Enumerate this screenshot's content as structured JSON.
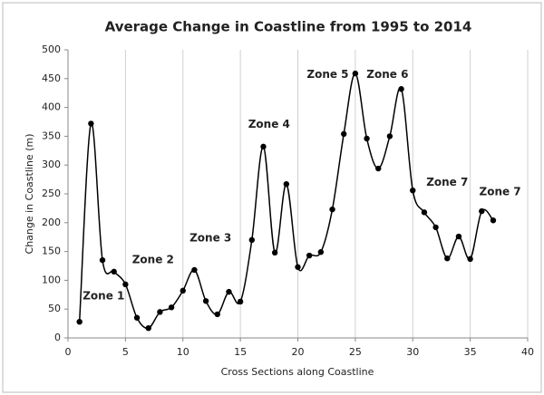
{
  "chart_data": {
    "type": "line",
    "title": "Average Change in Coastline from 1995 to 2014",
    "x_label": "Cross Sections along Coastline",
    "y_label": "Change in Coastline (m)",
    "x": [
      1,
      2,
      3,
      4,
      5,
      6,
      7,
      8,
      9,
      10,
      11,
      12,
      13,
      14,
      15,
      16,
      17,
      18,
      19,
      20,
      21,
      22,
      23,
      24,
      25,
      26,
      27,
      28,
      29,
      30,
      31,
      32,
      33,
      34,
      35,
      36,
      37
    ],
    "series": [
      {
        "name": "Average change",
        "color": "#000000",
        "values": [
          28,
          372,
          135,
          115,
          93,
          35,
          17,
          45,
          53,
          82,
          118,
          64,
          41,
          80,
          63,
          170,
          332,
          148,
          267,
          123,
          143,
          149,
          223,
          354,
          459,
          346,
          294,
          350,
          432,
          256,
          218,
          192,
          138,
          176,
          137,
          220,
          204
        ]
      }
    ],
    "annotations": [
      "Zone 1",
      "Zone 2",
      "Zone 3",
      "Zone 4",
      "Zone 5",
      "Zone 6",
      "Zone 7",
      "Zone 7"
    ],
    "xlim": [
      0,
      40
    ],
    "xticks": [
      0,
      5,
      10,
      15,
      20,
      25,
      30,
      35,
      40
    ],
    "ylim": [
      0,
      500
    ],
    "yticks": [
      0,
      50,
      100,
      150,
      200,
      250,
      300,
      350,
      400,
      450,
      500
    ],
    "grid": "x",
    "smooth": true
  }
}
